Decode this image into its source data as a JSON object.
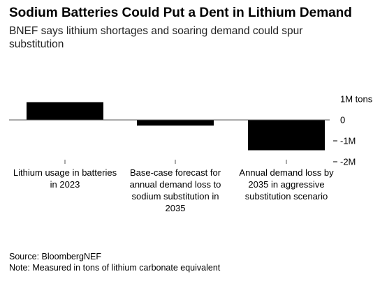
{
  "title": "Sodium Batteries Could Put a Dent in Lithium Demand",
  "subtitle": "BNEF says lithium shortages and soaring demand could spur substitution",
  "source": "Source: BloombergNEF",
  "note": "Note: Measured in tons of lithium carbonate equivalent",
  "chart_data": {
    "type": "bar",
    "categories": [
      [
        "Lithium usage in batteries",
        "in 2023"
      ],
      [
        "Base-case forecast for",
        "annual demand loss to",
        "sodium substitution in",
        "2035"
      ],
      [
        "Annual demand loss by",
        "2035 in aggressive",
        "substitution scenario"
      ]
    ],
    "values": [
      850000,
      -270000,
      -1450000
    ],
    "ylim": [
      -2000000,
      1000000
    ],
    "yticks": [
      1000000,
      0,
      -1000000,
      -2000000
    ],
    "ytick_labels": [
      "1M tons",
      "0",
      "-1M",
      "-2M"
    ],
    "bar_color": "#000000",
    "grid": false
  }
}
